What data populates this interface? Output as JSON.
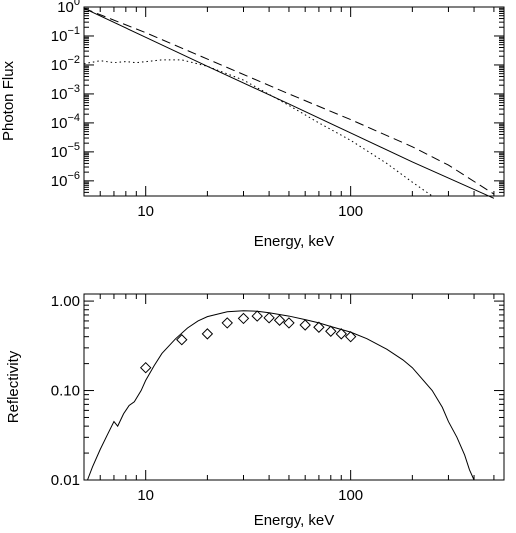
{
  "chart_data": [
    {
      "type": "line",
      "xlabel": "Energy, keV",
      "ylabel": "Photon Flux",
      "xscale": "log",
      "yscale": "log",
      "xlim": [
        5,
        560
      ],
      "ylim": [
        3e-07,
        1
      ],
      "x_ticks": [
        {
          "value": 10,
          "label": "10"
        },
        {
          "value": 100,
          "label": "100"
        }
      ],
      "y_ticks": [
        {
          "value": 1,
          "base": "10",
          "exp": "0"
        },
        {
          "value": 0.1,
          "base": "10",
          "exp": "−1"
        },
        {
          "value": 0.01,
          "base": "10",
          "exp": "−2"
        },
        {
          "value": 0.001,
          "base": "10",
          "exp": "−3"
        },
        {
          "value": 0.0001,
          "base": "10",
          "exp": "−4"
        },
        {
          "value": 1e-05,
          "base": "10",
          "exp": "−5"
        },
        {
          "value": 1e-06,
          "base": "10",
          "exp": "−6"
        }
      ],
      "series": [
        {
          "style": "solid",
          "x": [
            5,
            10,
            20,
            50,
            100,
            200,
            500
          ],
          "y": [
            0.9,
            0.09,
            0.009,
            0.00045,
            4.5e-05,
            4.5e-06,
            2.5e-07
          ]
        },
        {
          "style": "dashed",
          "x": [
            5,
            10,
            20,
            50,
            100,
            200,
            300,
            500
          ],
          "y": [
            0.9,
            0.13,
            0.016,
            0.001,
            0.00013,
            1.5e-05,
            3.5e-06,
            3.5e-07
          ]
        },
        {
          "style": "dotted",
          "x": [
            5,
            6,
            7,
            8,
            9,
            10,
            12,
            15,
            20,
            30,
            50,
            70,
            100,
            150,
            200,
            250
          ],
          "y": [
            0.011,
            0.014,
            0.012,
            0.013,
            0.012,
            0.013,
            0.015,
            0.015,
            0.009,
            0.003,
            0.0004,
            0.0001,
            2.5e-05,
            4e-06,
            9e-07,
            3e-07
          ]
        }
      ]
    },
    {
      "type": "line",
      "xlabel": "Energy, keV",
      "ylabel": "Reflectivity",
      "xscale": "log",
      "yscale": "log",
      "xlim": [
        5,
        560
      ],
      "ylim": [
        0.01,
        1.2
      ],
      "x_ticks": [
        {
          "value": 10,
          "label": "10"
        },
        {
          "value": 100,
          "label": "100"
        }
      ],
      "y_ticks": [
        {
          "value": 1,
          "label": "1.00"
        },
        {
          "value": 0.1,
          "label": "0.10"
        },
        {
          "value": 0.01,
          "label": "0.01"
        }
      ],
      "series": [
        {
          "style": "solid",
          "x": [
            5.2,
            5.5,
            6,
            6.5,
            7,
            7.3,
            7.8,
            8.3,
            8.8,
            9.5,
            10,
            11,
            12,
            14,
            16,
            18,
            20,
            25,
            30,
            35,
            40,
            50,
            60,
            70,
            80,
            100,
            120,
            150,
            180,
            200,
            220,
            250,
            280,
            300,
            330,
            360,
            380,
            400
          ],
          "y": [
            0.01,
            0.014,
            0.022,
            0.032,
            0.045,
            0.04,
            0.055,
            0.068,
            0.075,
            0.1,
            0.13,
            0.19,
            0.26,
            0.38,
            0.5,
            0.6,
            0.67,
            0.76,
            0.78,
            0.77,
            0.74,
            0.68,
            0.62,
            0.57,
            0.52,
            0.45,
            0.38,
            0.29,
            0.22,
            0.18,
            0.14,
            0.1,
            0.065,
            0.045,
            0.03,
            0.019,
            0.013,
            0.01
          ]
        },
        {
          "style": "diamond-markers",
          "x": [
            10,
            15,
            20,
            25,
            30,
            35,
            40,
            45,
            50,
            60,
            70,
            80,
            90,
            100
          ],
          "y": [
            0.18,
            0.37,
            0.43,
            0.57,
            0.64,
            0.68,
            0.65,
            0.61,
            0.57,
            0.54,
            0.51,
            0.46,
            0.43,
            0.4
          ]
        }
      ]
    }
  ]
}
